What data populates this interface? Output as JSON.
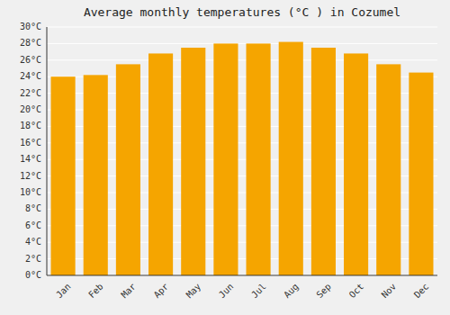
{
  "chart_data": {
    "type": "bar",
    "title": "Average monthly temperatures (°C ) in Cozumel",
    "categories": [
      "Jan",
      "Feb",
      "Mar",
      "Apr",
      "May",
      "Jun",
      "Jul",
      "Aug",
      "Sep",
      "Oct",
      "Nov",
      "Dec"
    ],
    "values": [
      24.0,
      24.2,
      25.5,
      26.8,
      27.5,
      28.0,
      28.0,
      28.2,
      27.5,
      26.8,
      25.5,
      24.5
    ],
    "color": "#F5A500",
    "ylim": [
      0,
      30
    ],
    "yticks": [
      {
        "value": 0,
        "label": "0°C"
      },
      {
        "value": 2,
        "label": "2°C"
      },
      {
        "value": 4,
        "label": "4°C"
      },
      {
        "value": 6,
        "label": "6°C"
      },
      {
        "value": 8,
        "label": "8°C"
      },
      {
        "value": 10,
        "label": "10°C"
      },
      {
        "value": 12,
        "label": "12°C"
      },
      {
        "value": 14,
        "label": "14°C"
      },
      {
        "value": 16,
        "label": "16°C"
      },
      {
        "value": 18,
        "label": "18°C"
      },
      {
        "value": 20,
        "label": "20°C"
      },
      {
        "value": 22,
        "label": "22°C"
      },
      {
        "value": 24,
        "label": "24°C"
      },
      {
        "value": 26,
        "label": "26°C"
      },
      {
        "value": 28,
        "label": "28°C"
      },
      {
        "value": 30,
        "label": "30°C"
      }
    ],
    "grid": true
  }
}
